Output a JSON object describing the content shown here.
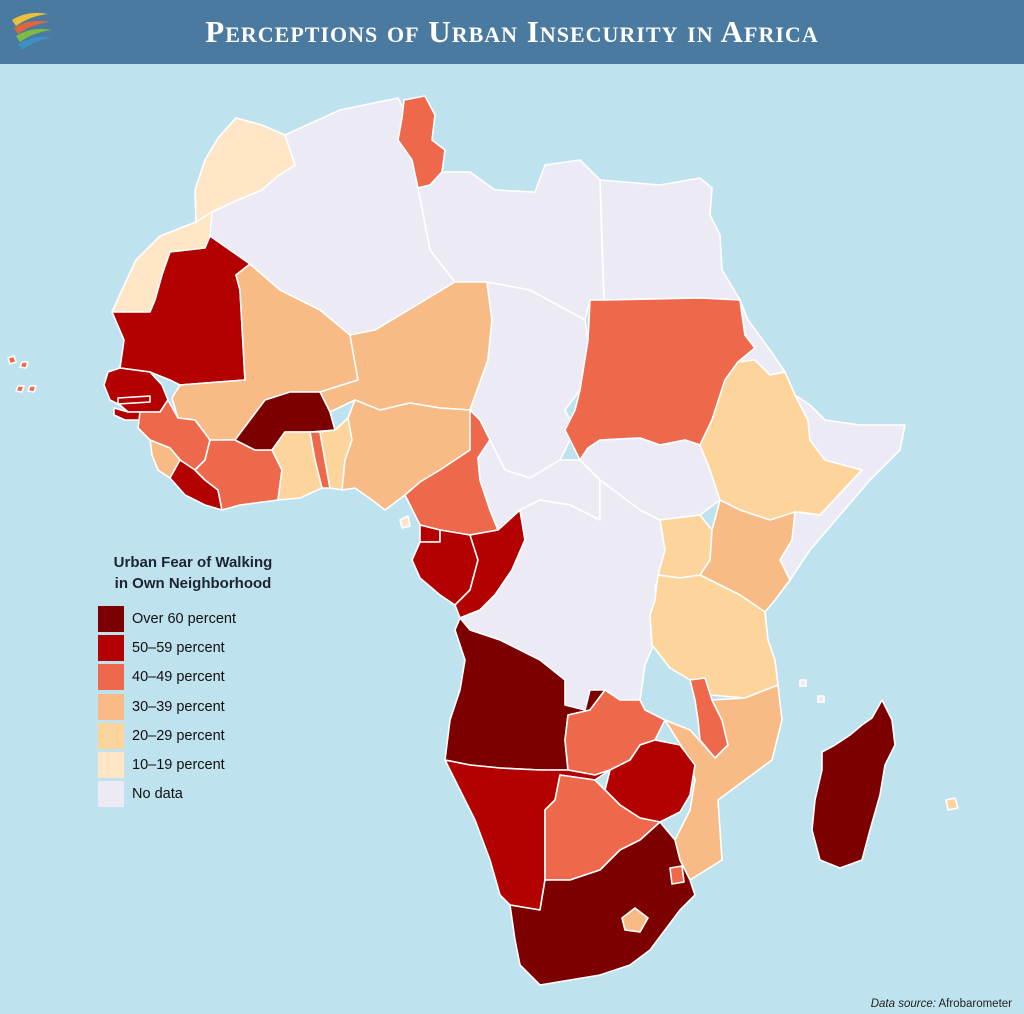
{
  "title": "Perceptions of Urban Insecurity in Africa",
  "legend": {
    "title_line1": "Urban Fear of Walking",
    "title_line2": "in Own Neighborhood",
    "items": [
      {
        "label": "Over 60 percent",
        "color": "#7d0000"
      },
      {
        "label": "50–59 percent",
        "color": "#b30000"
      },
      {
        "label": "40–49 percent",
        "color": "#ee694b"
      },
      {
        "label": "30–39 percent",
        "color": "#f8bb86"
      },
      {
        "label": "20–29 percent",
        "color": "#fdd59c"
      },
      {
        "label": "10–19 percent",
        "color": "#fee6c6"
      },
      {
        "label": "No data",
        "color": "#ecebf5"
      }
    ]
  },
  "source": {
    "prefix": "Data source:",
    "name": "Afrobarometer"
  },
  "colors": {
    "ocean": "#bfe2ef",
    "header": "#4a7aa0",
    "border": "#ffffff"
  }
}
